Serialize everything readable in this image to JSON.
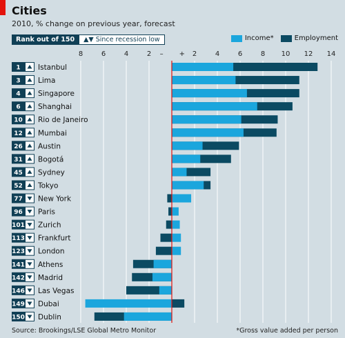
{
  "title": "Cities",
  "subtitle": "2010, % change on previous year, forecast",
  "rank_header": "Rank out of 150",
  "rank_change_header": "▲▼ Since recession low",
  "source": "Source: Brookings/LSE Global Metro Monitor",
  "note": "*Gross value added per person",
  "colors": {
    "income": "#1ba6dd",
    "employment": "#0b4a62",
    "zero": "#e3120b",
    "rank_box": "#103f55"
  },
  "chart_data": {
    "type": "bar",
    "orientation": "horizontal",
    "xlim": [
      -8,
      14
    ],
    "xticks": [
      8,
      6,
      4,
      2,
      "–",
      "+",
      2,
      4,
      6,
      8,
      10,
      12,
      14
    ],
    "grid": true,
    "legend": "top-right",
    "series_labels": [
      "Income*",
      "Employment"
    ],
    "rows": [
      {
        "rank": "1",
        "dir": "up",
        "city": "Istanbul",
        "income": 5.4,
        "employment": 12.8
      },
      {
        "rank": "3",
        "dir": "up",
        "city": "Lima",
        "income": 5.6,
        "employment": 11.2
      },
      {
        "rank": "4",
        "dir": "up",
        "city": "Singapore",
        "income": 6.6,
        "employment": 11.2
      },
      {
        "rank": "6",
        "dir": "up",
        "city": "Shanghai",
        "income": 7.5,
        "employment": 10.6
      },
      {
        "rank": "10",
        "dir": "up",
        "city": "Rio de Janeiro",
        "income": 6.1,
        "employment": 9.3
      },
      {
        "rank": "12",
        "dir": "up",
        "city": "Mumbai",
        "income": 6.3,
        "employment": 9.2
      },
      {
        "rank": "26",
        "dir": "up",
        "city": "Austin",
        "income": 2.7,
        "employment": 5.9
      },
      {
        "rank": "31",
        "dir": "up",
        "city": "Bogotá",
        "income": 2.5,
        "employment": 5.2
      },
      {
        "rank": "45",
        "dir": "up",
        "city": "Sydney",
        "income": 1.3,
        "employment": 3.4
      },
      {
        "rank": "52",
        "dir": "up",
        "city": "Tokyo",
        "income": 2.8,
        "employment": 3.4
      },
      {
        "rank": "77",
        "dir": "down",
        "city": "New York",
        "income": 1.7,
        "employment": -0.4
      },
      {
        "rank": "96",
        "dir": "down",
        "city": "Paris",
        "income": 0.6,
        "employment": -0.3
      },
      {
        "rank": "101",
        "dir": "down",
        "city": "Zurich",
        "income": 0.7,
        "employment": -0.5
      },
      {
        "rank": "113",
        "dir": "down",
        "city": "Frankfurt",
        "income": 0.8,
        "employment": -1.0
      },
      {
        "rank": "123",
        "dir": "down",
        "city": "London",
        "income": 0.8,
        "employment": -1.4
      },
      {
        "rank": "141",
        "dir": "down",
        "city": "Athens",
        "income": -1.6,
        "employment": -3.4
      },
      {
        "rank": "142",
        "dir": "down",
        "city": "Madrid",
        "income": -1.7,
        "employment": -3.5
      },
      {
        "rank": "146",
        "dir": "down",
        "city": "Las Vegas",
        "income": -1.1,
        "employment": -4.0
      },
      {
        "rank": "149",
        "dir": "down",
        "city": "Dubai",
        "income": -7.6,
        "employment": 1.1
      },
      {
        "rank": "150",
        "dir": "down",
        "city": "Dublin",
        "income": -4.2,
        "employment": -6.8
      }
    ]
  }
}
